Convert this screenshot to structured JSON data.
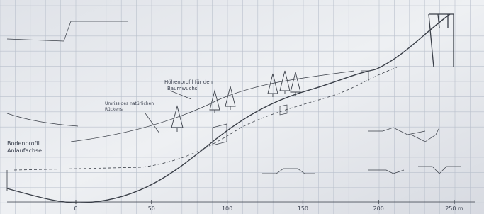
{
  "notes": {
    "tree_zone": [
      "Höhenprofil für den",
      "Baumwuchs"
    ],
    "ridge": [
      "Umriss des natürlichen",
      "Rückens"
    ],
    "ground": [
      "Bodenprofil",
      "Anlaufachse"
    ]
  },
  "axis": {
    "ticks": [
      "0",
      "50",
      "100",
      "150",
      "200",
      "250 m"
    ]
  }
}
